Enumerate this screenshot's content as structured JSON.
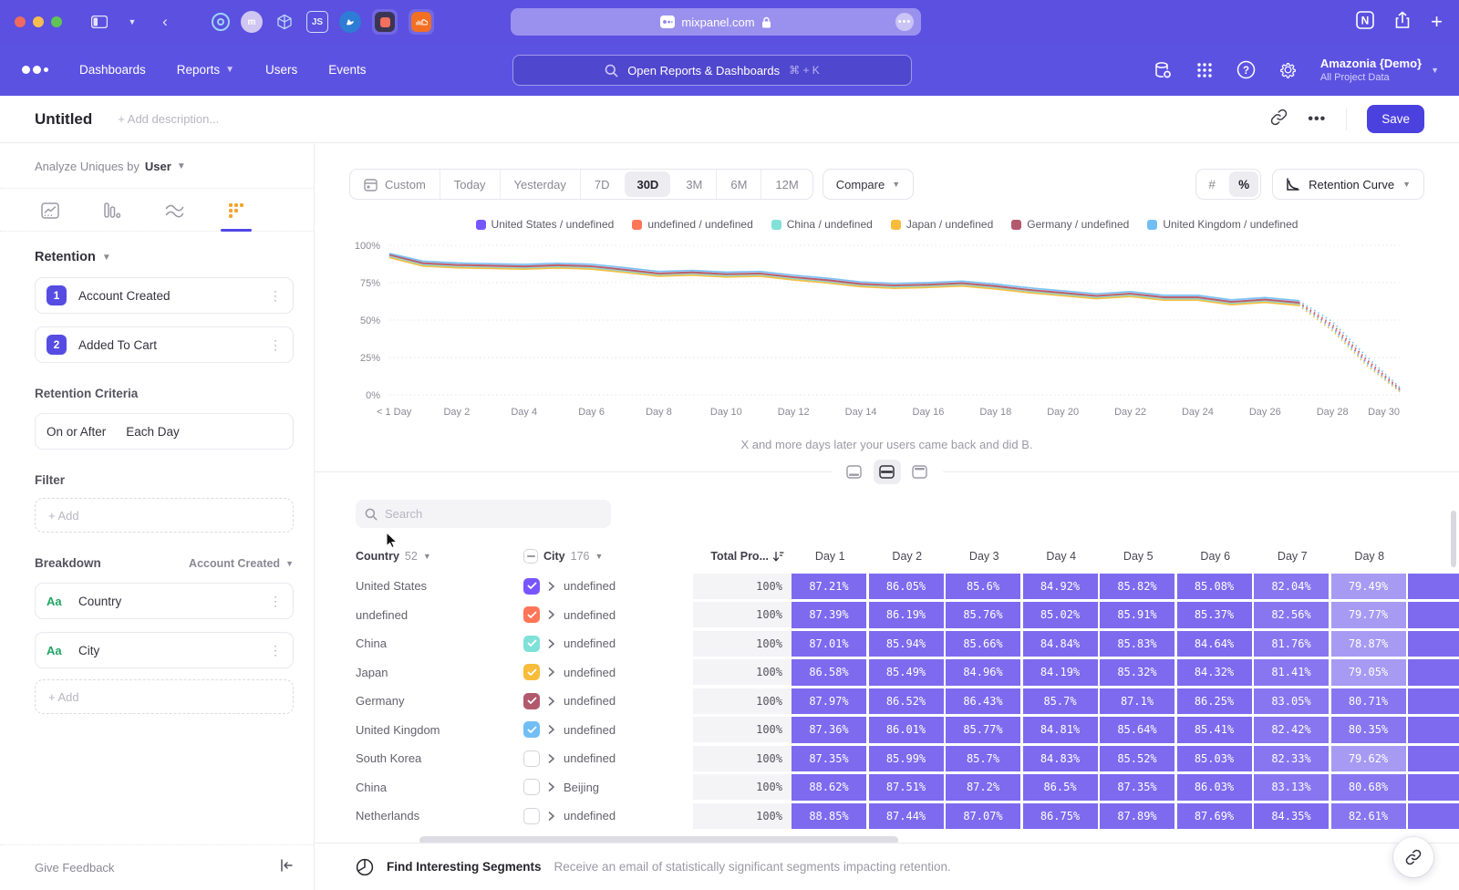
{
  "browser": {
    "url": "mixpanel.com",
    "extensions": [
      "target",
      "m-avatar",
      "cube",
      "js-badge",
      "bird",
      "product-hunt",
      "soundcloud"
    ]
  },
  "nav": {
    "links": [
      {
        "label": "Dashboards",
        "chevron": false
      },
      {
        "label": "Reports",
        "chevron": true
      },
      {
        "label": "Users",
        "chevron": false
      },
      {
        "label": "Events",
        "chevron": false
      }
    ],
    "search_placeholder": "Open Reports & Dashboards",
    "search_shortcut": "⌘ + K",
    "account_name": "Amazonia {Demo}",
    "account_subtitle": "All Project Data"
  },
  "header": {
    "title": "Untitled",
    "description_placeholder": "+ Add description...",
    "save_label": "Save"
  },
  "sidebar": {
    "analyze_label": "Analyze Uniques by",
    "analyze_value": "User",
    "section_title": "Retention",
    "steps": [
      {
        "index": "1",
        "label": "Account Created"
      },
      {
        "index": "2",
        "label": "Added To Cart"
      }
    ],
    "criteria_title": "Retention Criteria",
    "criteria_value_1": "On or After",
    "criteria_value_2": "Each Day",
    "filter_title": "Filter",
    "filter_add_label": "+ Add",
    "breakdown_title": "Breakdown",
    "breakdown_selector": "Account Created",
    "breakdowns": [
      {
        "type": "Aa",
        "label": "Country"
      },
      {
        "type": "Aa",
        "label": "City"
      }
    ],
    "breakdown_add_label": "+ Add",
    "feedback_label": "Give Feedback"
  },
  "toolbar": {
    "ranges": [
      "Custom",
      "Today",
      "Yesterday",
      "7D",
      "30D",
      "3M",
      "6M",
      "12M"
    ],
    "active_range": "30D",
    "compare_label": "Compare",
    "units": [
      "#",
      "%"
    ],
    "active_unit": "%",
    "view_selector_label": "Retention Curve"
  },
  "chart_data": {
    "type": "line",
    "caption": "X and more days later your users came back and did B.",
    "y_ticks": [
      "100%",
      "75%",
      "50%",
      "25%",
      "0%"
    ],
    "ylim": [
      0,
      100
    ],
    "x_tick_labels": [
      "< 1 Day",
      "Day 2",
      "Day 4",
      "Day 6",
      "Day 8",
      "Day 10",
      "Day 12",
      "Day 14",
      "Day 16",
      "Day 18",
      "Day 20",
      "Day 22",
      "Day 24",
      "Day 26",
      "Day 28",
      "Day 30"
    ],
    "x_tick_days": [
      0,
      2,
      4,
      6,
      8,
      10,
      12,
      14,
      16,
      18,
      20,
      22,
      24,
      26,
      28,
      30
    ],
    "dashed_from_index": 27,
    "series": [
      {
        "name": "United States / undefined",
        "color": "#7856FF",
        "values": [
          93,
          87.3,
          86.2,
          85.7,
          85.2,
          86,
          85.3,
          83,
          80.5,
          81.2,
          80,
          80.5,
          78,
          76,
          73.5,
          72.5,
          73,
          74,
          72,
          69.5,
          67.5,
          65.5,
          67,
          64.5,
          64.5,
          61.5,
          63,
          61,
          45,
          22,
          3
        ]
      },
      {
        "name": "undefined / undefined",
        "color": "#FF7557",
        "values": [
          93.4,
          87.7,
          86.6,
          86.1,
          85.6,
          86.4,
          85.7,
          83.4,
          80.9,
          81.6,
          80.4,
          80.9,
          78.4,
          76.4,
          73.9,
          72.9,
          73.4,
          74.4,
          72.4,
          69.9,
          67.9,
          65.9,
          67.4,
          64.9,
          64.9,
          61.9,
          63.4,
          61.4,
          46,
          23,
          3.5
        ]
      },
      {
        "name": "China / undefined",
        "color": "#80E1D9",
        "values": [
          92.5,
          86.8,
          85.7,
          85.2,
          84.7,
          85.5,
          84.8,
          82.5,
          80,
          80.7,
          79.5,
          80,
          77.5,
          75.5,
          73,
          72,
          72.5,
          73.5,
          71.5,
          69,
          67,
          65,
          66.5,
          64,
          64,
          61,
          62.5,
          60.5,
          44,
          21,
          2.5
        ]
      },
      {
        "name": "Japan / undefined",
        "color": "#F8BC3B",
        "values": [
          91.8,
          86.1,
          85,
          84.5,
          84,
          84.8,
          84.1,
          81.8,
          79.3,
          80,
          78.8,
          79.3,
          76.8,
          74.8,
          72.3,
          71.3,
          71.8,
          72.8,
          70.8,
          68.3,
          66.3,
          64.3,
          65.8,
          63.3,
          63.3,
          60.3,
          61.8,
          59.8,
          43,
          20,
          2
        ]
      },
      {
        "name": "Germany / undefined",
        "color": "#B2596E",
        "values": [
          93.8,
          88.1,
          87,
          86.5,
          86,
          86.8,
          86.1,
          83.8,
          81.3,
          82,
          80.8,
          81.3,
          78.8,
          76.8,
          74.3,
          73.3,
          73.8,
          74.8,
          72.8,
          70.3,
          68.3,
          66.3,
          67.8,
          65.3,
          65.3,
          62.3,
          63.8,
          61.8,
          47,
          24,
          4
        ]
      },
      {
        "name": "United Kingdom / undefined",
        "color": "#72BEF4",
        "values": [
          94.6,
          89.3,
          88.2,
          87.7,
          87.2,
          88,
          87.3,
          85,
          82.5,
          83.2,
          82,
          82.5,
          80,
          78,
          75.5,
          74.5,
          75,
          76,
          74,
          71.5,
          69.5,
          67.5,
          69,
          66.5,
          66.5,
          63.5,
          65,
          63,
          49,
          26,
          5
        ]
      }
    ]
  },
  "table": {
    "search_placeholder": "Search",
    "columns": {
      "country_label": "Country",
      "country_count": "52",
      "city_label": "City",
      "city_count": "176",
      "total_label": "Total Pro...",
      "days": [
        "Day 1",
        "Day 2",
        "Day 3",
        "Day 4",
        "Day 5",
        "Day 6",
        "Day 7",
        "Day 8"
      ]
    },
    "rows": [
      {
        "country": "United States",
        "checked": true,
        "color": "#7856FF",
        "city": "undefined",
        "total": "100%",
        "values": [
          87.21,
          86.05,
          85.6,
          84.92,
          85.82,
          85.08,
          82.04,
          79.49
        ]
      },
      {
        "country": "undefined",
        "checked": true,
        "color": "#FF7557",
        "city": "undefined",
        "total": "100%",
        "values": [
          87.39,
          86.19,
          85.76,
          85.02,
          85.91,
          85.37,
          82.56,
          79.77
        ]
      },
      {
        "country": "China",
        "checked": true,
        "color": "#80E1D9",
        "city": "undefined",
        "total": "100%",
        "values": [
          87.01,
          85.94,
          85.66,
          84.84,
          85.83,
          84.64,
          81.76,
          78.87
        ]
      },
      {
        "country": "Japan",
        "checked": true,
        "color": "#F8BC3B",
        "city": "undefined",
        "total": "100%",
        "values": [
          86.58,
          85.49,
          84.96,
          84.19,
          85.32,
          84.32,
          81.41,
          79.05
        ]
      },
      {
        "country": "Germany",
        "checked": true,
        "color": "#B2596E",
        "city": "undefined",
        "total": "100%",
        "values": [
          87.97,
          86.52,
          86.43,
          85.7,
          87.1,
          86.25,
          83.05,
          80.71
        ]
      },
      {
        "country": "United Kingdom",
        "checked": true,
        "color": "#72BEF4",
        "city": "undefined",
        "total": "100%",
        "values": [
          87.36,
          86.01,
          85.77,
          84.81,
          85.64,
          85.41,
          82.42,
          80.35
        ]
      },
      {
        "country": "South Korea",
        "checked": false,
        "color": null,
        "city": "undefined",
        "total": "100%",
        "values": [
          87.35,
          85.99,
          85.7,
          84.83,
          85.52,
          85.03,
          82.33,
          79.62
        ]
      },
      {
        "country": "China",
        "checked": false,
        "color": null,
        "city": "Beijing",
        "total": "100%",
        "values": [
          88.62,
          87.51,
          87.2,
          86.5,
          87.35,
          86.03,
          83.13,
          80.68
        ]
      },
      {
        "country": "Netherlands",
        "checked": false,
        "color": null,
        "city": "undefined",
        "total": "100%",
        "values": [
          88.85,
          87.44,
          87.07,
          86.75,
          87.89,
          87.69,
          84.35,
          82.61
        ]
      }
    ]
  },
  "footer": {
    "title": "Find Interesting Segments",
    "description": "Receive an email of statistically significant segments impacting retention."
  }
}
